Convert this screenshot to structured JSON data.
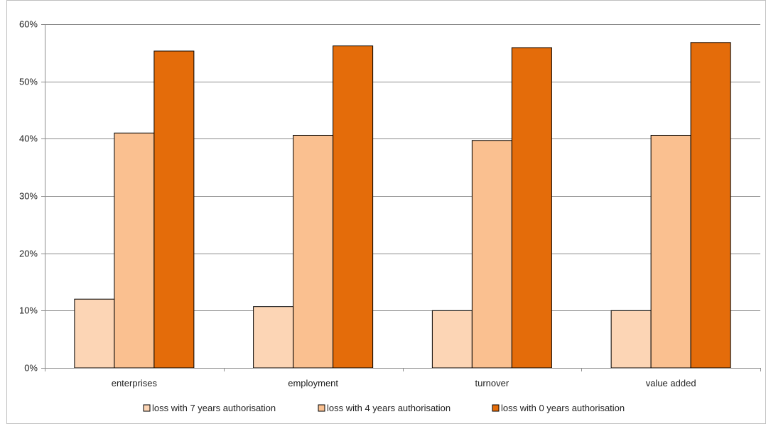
{
  "chart_data": {
    "type": "bar",
    "title": "",
    "xlabel": "",
    "ylabel": "",
    "categories": [
      "enterprises",
      "employment",
      "turnover",
      "value added"
    ],
    "series": [
      {
        "name": "loss with 7 years authorisation",
        "values": [
          12.0,
          10.7,
          10.0,
          10.0
        ],
        "color": "#FCD5B5"
      },
      {
        "name": "loss with 4 years authorisation",
        "values": [
          41.0,
          40.6,
          39.7,
          40.6
        ],
        "color": "#FAC090"
      },
      {
        "name": "loss with 0 years authorisation",
        "values": [
          55.3,
          56.2,
          55.9,
          56.8
        ],
        "color": "#E46C0A"
      }
    ],
    "ylim": [
      0,
      60
    ],
    "yticks": [
      "0%",
      "10%",
      "20%",
      "30%",
      "40%",
      "50%",
      "60%"
    ],
    "grid": true,
    "legend_position": "bottom"
  }
}
